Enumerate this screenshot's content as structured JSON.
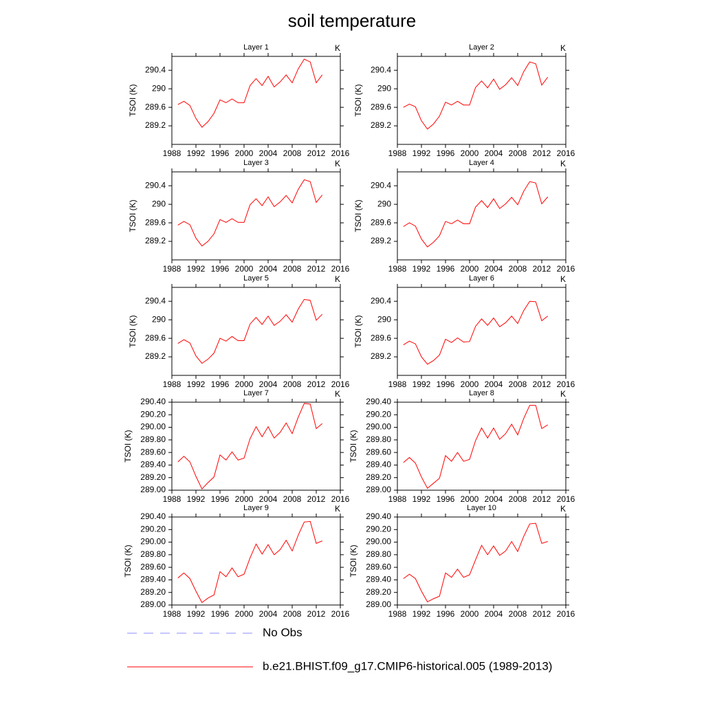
{
  "title": "soil temperature",
  "legend": [
    {
      "name": "No Obs",
      "color": "#8c8cff",
      "style": "dashed"
    },
    {
      "name": "b.e21.BHIST.f09_g17.CMIP6-historical.005 (1989-2013)",
      "color": "#ff0000",
      "style": "solid"
    }
  ],
  "chart_data": [
    {
      "type": "line",
      "title": "Layer 1",
      "units": "K",
      "y_label": "TSOI  (K)",
      "x": [
        1989,
        1990,
        1991,
        1992,
        1993,
        1994,
        1995,
        1996,
        1997,
        1998,
        1999,
        2000,
        2001,
        2002,
        2003,
        2004,
        2005,
        2006,
        2007,
        2008,
        2009,
        2010,
        2011,
        2012,
        2013
      ],
      "series": [
        {
          "color": "#ff0000",
          "values": [
            289.66,
            289.73,
            289.64,
            289.36,
            289.17,
            289.29,
            289.47,
            289.76,
            289.7,
            289.78,
            289.7,
            289.7,
            290.07,
            290.22,
            290.07,
            290.27,
            290.04,
            290.15,
            290.3,
            290.13,
            290.43,
            290.64,
            290.58,
            290.13,
            290.3
          ]
        }
      ],
      "xlim": [
        1988,
        2016
      ],
      "xticks": [
        1988,
        1992,
        1996,
        2000,
        2004,
        2008,
        2012,
        2016
      ],
      "ylim": [
        288.8,
        290.7
      ],
      "yticks": [
        289.2,
        289.6,
        290.0,
        290.4
      ]
    },
    {
      "type": "line",
      "title": "Layer 2",
      "units": "K",
      "y_label": "TSOI  (K)",
      "x": [
        1989,
        1990,
        1991,
        1992,
        1993,
        1994,
        1995,
        1996,
        1997,
        1998,
        1999,
        2000,
        2001,
        2002,
        2003,
        2004,
        2005,
        2006,
        2007,
        2008,
        2009,
        2010,
        2011,
        2012,
        2013
      ],
      "series": [
        {
          "color": "#ff0000",
          "values": [
            289.6,
            289.67,
            289.61,
            289.31,
            289.13,
            289.24,
            289.41,
            289.71,
            289.65,
            289.73,
            289.65,
            289.65,
            290.03,
            290.17,
            290.02,
            290.21,
            289.99,
            290.09,
            290.24,
            290.07,
            290.37,
            290.58,
            290.54,
            290.08,
            290.25
          ]
        }
      ],
      "xlim": [
        1988,
        2016
      ],
      "xticks": [
        1988,
        1992,
        1996,
        2000,
        2004,
        2008,
        2012,
        2016
      ],
      "ylim": [
        288.8,
        290.7
      ],
      "yticks": [
        289.2,
        289.6,
        290.0,
        290.4
      ]
    },
    {
      "type": "line",
      "title": "Layer 3",
      "units": "K",
      "y_label": "TSOI  (K)",
      "x": [
        1989,
        1990,
        1991,
        1992,
        1993,
        1994,
        1995,
        1996,
        1997,
        1998,
        1999,
        2000,
        2001,
        2002,
        2003,
        2004,
        2005,
        2006,
        2007,
        2008,
        2009,
        2010,
        2011,
        2012,
        2013
      ],
      "series": [
        {
          "color": "#ff0000",
          "values": [
            289.55,
            289.63,
            289.56,
            289.27,
            289.1,
            289.2,
            289.36,
            289.67,
            289.61,
            289.69,
            289.61,
            289.61,
            289.99,
            290.12,
            289.97,
            290.16,
            289.95,
            290.05,
            290.19,
            290.03,
            290.32,
            290.53,
            290.49,
            290.04,
            290.2
          ]
        }
      ],
      "xlim": [
        1988,
        2016
      ],
      "xticks": [
        1988,
        1992,
        1996,
        2000,
        2004,
        2008,
        2012,
        2016
      ],
      "ylim": [
        288.8,
        290.7
      ],
      "yticks": [
        289.2,
        289.6,
        290.0,
        290.4
      ]
    },
    {
      "type": "line",
      "title": "Layer 4",
      "units": "K",
      "y_label": "TSOI  (K)",
      "x": [
        1989,
        1990,
        1991,
        1992,
        1993,
        1994,
        1995,
        1996,
        1997,
        1998,
        1999,
        2000,
        2001,
        2002,
        2003,
        2004,
        2005,
        2006,
        2007,
        2008,
        2009,
        2010,
        2011,
        2012,
        2013
      ],
      "series": [
        {
          "color": "#ff0000",
          "values": [
            289.52,
            289.6,
            289.53,
            289.25,
            289.08,
            289.18,
            289.32,
            289.63,
            289.58,
            289.66,
            289.58,
            289.58,
            289.94,
            290.08,
            289.93,
            290.12,
            289.91,
            290.01,
            290.15,
            289.99,
            290.28,
            290.49,
            290.46,
            290.01,
            290.16
          ]
        }
      ],
      "xlim": [
        1988,
        2016
      ],
      "xticks": [
        1988,
        1992,
        1996,
        2000,
        2004,
        2008,
        2012,
        2016
      ],
      "ylim": [
        288.8,
        290.7
      ],
      "yticks": [
        289.2,
        289.6,
        290.0,
        290.4
      ]
    },
    {
      "type": "line",
      "title": "Layer 5",
      "units": "K",
      "y_label": "TSOI  (K)",
      "x": [
        1989,
        1990,
        1991,
        1992,
        1993,
        1994,
        1995,
        1996,
        1997,
        1998,
        1999,
        2000,
        2001,
        2002,
        2003,
        2004,
        2005,
        2006,
        2007,
        2008,
        2009,
        2010,
        2011,
        2012,
        2013
      ],
      "series": [
        {
          "color": "#ff0000",
          "values": [
            289.49,
            289.57,
            289.5,
            289.22,
            289.06,
            289.15,
            289.28,
            289.6,
            289.54,
            289.64,
            289.55,
            289.55,
            289.91,
            290.05,
            289.9,
            290.08,
            289.88,
            289.97,
            290.11,
            289.95,
            290.23,
            290.44,
            290.42,
            289.99,
            290.12
          ]
        }
      ],
      "xlim": [
        1988,
        2016
      ],
      "xticks": [
        1988,
        1992,
        1996,
        2000,
        2004,
        2008,
        2012,
        2016
      ],
      "ylim": [
        288.8,
        290.7
      ],
      "yticks": [
        289.2,
        289.6,
        290.0,
        290.4
      ]
    },
    {
      "type": "line",
      "title": "Layer 6",
      "units": "K",
      "y_label": "TSOI  (K)",
      "x": [
        1989,
        1990,
        1991,
        1992,
        1993,
        1994,
        1995,
        1996,
        1997,
        1998,
        1999,
        2000,
        2001,
        2002,
        2003,
        2004,
        2005,
        2006,
        2007,
        2008,
        2009,
        2010,
        2011,
        2012,
        2013
      ],
      "series": [
        {
          "color": "#ff0000",
          "values": [
            289.46,
            289.54,
            289.48,
            289.2,
            289.04,
            289.12,
            289.24,
            289.58,
            289.51,
            289.61,
            289.52,
            289.53,
            289.86,
            290.02,
            289.88,
            290.04,
            289.85,
            289.94,
            290.08,
            289.92,
            290.2,
            290.4,
            290.39,
            289.98,
            290.08
          ]
        }
      ],
      "xlim": [
        1988,
        2016
      ],
      "xticks": [
        1988,
        1992,
        1996,
        2000,
        2004,
        2008,
        2012,
        2016
      ],
      "ylim": [
        288.8,
        290.7
      ],
      "yticks": [
        289.2,
        289.6,
        290.0,
        290.4
      ]
    },
    {
      "type": "line",
      "title": "Layer 7",
      "units": "K",
      "y_label": "TSOI  (K)",
      "x": [
        1989,
        1990,
        1991,
        1992,
        1993,
        1994,
        1995,
        1996,
        1997,
        1998,
        1999,
        2000,
        2001,
        2002,
        2003,
        2004,
        2005,
        2006,
        2007,
        2008,
        2009,
        2010,
        2011,
        2012,
        2013
      ],
      "series": [
        {
          "color": "#ff0000",
          "values": [
            289.45,
            289.54,
            289.45,
            289.22,
            289.02,
            289.12,
            289.21,
            289.56,
            289.48,
            289.61,
            289.48,
            289.51,
            289.82,
            290.01,
            289.85,
            290.01,
            289.83,
            289.92,
            290.07,
            289.9,
            290.16,
            290.38,
            290.37,
            289.98,
            290.06
          ]
        }
      ],
      "xlim": [
        1988,
        2016
      ],
      "xticks": [
        1988,
        1992,
        1996,
        2000,
        2004,
        2008,
        2012,
        2016
      ],
      "ylim": [
        289.0,
        290.4
      ],
      "yticks": [
        {
          "value": 289.0,
          "label": "289.00"
        },
        {
          "value": 289.2,
          "label": "289.20"
        },
        {
          "value": 289.4,
          "label": "289.40"
        },
        {
          "value": 289.6,
          "label": "289.60"
        },
        {
          "value": 289.8,
          "label": "289.80"
        },
        {
          "value": 290.0,
          "label": "290.00"
        },
        {
          "value": 290.2,
          "label": "290.20"
        },
        {
          "value": 290.4,
          "label": "290.40"
        }
      ]
    },
    {
      "type": "line",
      "title": "Layer 8",
      "units": "K",
      "y_label": "TSOI  (K)",
      "x": [
        1989,
        1990,
        1991,
        1992,
        1993,
        1994,
        1995,
        1996,
        1997,
        1998,
        1999,
        2000,
        2001,
        2002,
        2003,
        2004,
        2005,
        2006,
        2007,
        2008,
        2009,
        2010,
        2011,
        2012,
        2013
      ],
      "series": [
        {
          "color": "#ff0000",
          "values": [
            289.44,
            289.52,
            289.43,
            289.21,
            289.03,
            289.11,
            289.19,
            289.55,
            289.46,
            289.6,
            289.46,
            289.49,
            289.79,
            289.99,
            289.83,
            289.99,
            289.81,
            289.9,
            290.05,
            289.88,
            290.14,
            290.35,
            290.35,
            289.98,
            290.04
          ]
        }
      ],
      "xlim": [
        1988,
        2016
      ],
      "xticks": [
        1988,
        1992,
        1996,
        2000,
        2004,
        2008,
        2012,
        2016
      ],
      "ylim": [
        289.0,
        290.4
      ],
      "yticks": [
        {
          "value": 289.0,
          "label": "289.00"
        },
        {
          "value": 289.2,
          "label": "289.20"
        },
        {
          "value": 289.4,
          "label": "289.40"
        },
        {
          "value": 289.6,
          "label": "289.60"
        },
        {
          "value": 289.8,
          "label": "289.80"
        },
        {
          "value": 290.0,
          "label": "290.00"
        },
        {
          "value": 290.2,
          "label": "290.20"
        },
        {
          "value": 290.4,
          "label": "290.40"
        }
      ]
    },
    {
      "type": "line",
      "title": "Layer 9",
      "units": "K",
      "y_label": "TSOI  (K)",
      "x": [
        1989,
        1990,
        1991,
        1992,
        1993,
        1994,
        1995,
        1996,
        1997,
        1998,
        1999,
        2000,
        2001,
        2002,
        2003,
        2004,
        2005,
        2006,
        2007,
        2008,
        2009,
        2010,
        2011,
        2012,
        2013
      ],
      "series": [
        {
          "color": "#ff0000",
          "values": [
            289.43,
            289.51,
            289.42,
            289.22,
            289.04,
            289.11,
            289.16,
            289.53,
            289.45,
            289.59,
            289.45,
            289.49,
            289.75,
            289.97,
            289.81,
            289.96,
            289.8,
            289.88,
            290.03,
            289.86,
            290.11,
            290.32,
            290.33,
            289.98,
            290.02
          ]
        }
      ],
      "xlim": [
        1988,
        2016
      ],
      "xticks": [
        1988,
        1992,
        1996,
        2000,
        2004,
        2008,
        2012,
        2016
      ],
      "ylim": [
        289.0,
        290.4
      ],
      "yticks": [
        {
          "value": 289.0,
          "label": "289.00"
        },
        {
          "value": 289.2,
          "label": "289.20"
        },
        {
          "value": 289.4,
          "label": "289.40"
        },
        {
          "value": 289.6,
          "label": "289.60"
        },
        {
          "value": 289.8,
          "label": "289.80"
        },
        {
          "value": 290.0,
          "label": "290.00"
        },
        {
          "value": 290.2,
          "label": "290.20"
        },
        {
          "value": 290.4,
          "label": "290.40"
        }
      ]
    },
    {
      "type": "line",
      "title": "Layer 10",
      "units": "K",
      "y_label": "TSOI  (K)",
      "x": [
        1989,
        1990,
        1991,
        1992,
        1993,
        1994,
        1995,
        1996,
        1997,
        1998,
        1999,
        2000,
        2001,
        2002,
        2003,
        2004,
        2005,
        2006,
        2007,
        2008,
        2009,
        2010,
        2011,
        2012,
        2013
      ],
      "series": [
        {
          "color": "#ff0000",
          "values": [
            289.42,
            289.49,
            289.42,
            289.22,
            289.05,
            289.1,
            289.14,
            289.51,
            289.44,
            289.57,
            289.44,
            289.48,
            289.72,
            289.95,
            289.8,
            289.94,
            289.79,
            289.86,
            290.01,
            289.85,
            290.09,
            290.29,
            290.3,
            289.98,
            290.01
          ]
        }
      ],
      "xlim": [
        1988,
        2016
      ],
      "xticks": [
        1988,
        1992,
        1996,
        2000,
        2004,
        2008,
        2012,
        2016
      ],
      "ylim": [
        289.0,
        290.4
      ],
      "yticks": [
        {
          "value": 289.0,
          "label": "289.00"
        },
        {
          "value": 289.2,
          "label": "289.20"
        },
        {
          "value": 289.4,
          "label": "289.40"
        },
        {
          "value": 289.6,
          "label": "289.60"
        },
        {
          "value": 289.8,
          "label": "289.80"
        },
        {
          "value": 290.0,
          "label": "290.00"
        },
        {
          "value": 290.2,
          "label": "290.20"
        },
        {
          "value": 290.4,
          "label": "290.40"
        }
      ]
    }
  ]
}
